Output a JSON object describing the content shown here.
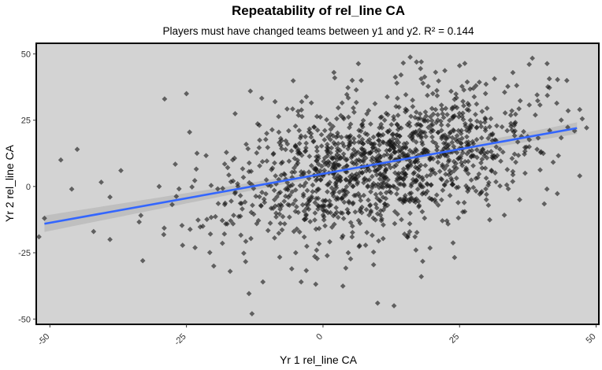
{
  "chart_data": {
    "type": "scatter",
    "title": "Repeatability of rel_line CA",
    "subtitle": "Players must have changed teams between y1 and y2. R² = 0.144",
    "xlabel": "Yr 1 rel_line CA",
    "ylabel": "Yr 2 rel_line CA",
    "xlim": [
      -52.5,
      50.5
    ],
    "ylim": [
      -52,
      54
    ],
    "x_ticks": [
      -50,
      -25,
      0,
      25,
      50
    ],
    "x_tick_labels": [
      "-50",
      "-25",
      "0",
      "25",
      "50"
    ],
    "y_ticks": [
      -50,
      -25,
      0,
      25,
      50
    ],
    "y_tick_labels": [
      "-50",
      "-25",
      "0",
      "25",
      "50"
    ],
    "grid": false,
    "r_squared": 0.144,
    "point_count": 1400,
    "point_distribution": {
      "center_x": 10,
      "center_y": 8,
      "sd_x": 14,
      "sd_y": 14,
      "correlation": 0.38
    },
    "series": [
      {
        "name": "points",
        "points": [
          {
            "x": 18,
            "y": 47
          },
          {
            "x": 2,
            "y": 43
          },
          {
            "x": 7,
            "y": 40
          },
          {
            "x": -25,
            "y": 35
          },
          {
            "x": -29,
            "y": 33
          },
          {
            "x": 28,
            "y": 38
          },
          {
            "x": -45,
            "y": 14
          },
          {
            "x": -48,
            "y": 10
          },
          {
            "x": -37,
            "y": 6
          },
          {
            "x": -46,
            "y": -1
          },
          {
            "x": -39,
            "y": -4
          },
          {
            "x": -51,
            "y": -12
          },
          {
            "x": -52,
            "y": -19
          },
          {
            "x": -39,
            "y": -20
          },
          {
            "x": -33,
            "y": -28
          },
          {
            "x": -42,
            "y": -17
          },
          {
            "x": -13,
            "y": -48
          },
          {
            "x": 10,
            "y": -44
          },
          {
            "x": 13,
            "y": -45
          },
          {
            "x": -11,
            "y": -36
          },
          {
            "x": -4,
            "y": -36
          },
          {
            "x": 18,
            "y": -34
          },
          {
            "x": 47,
            "y": 29
          },
          {
            "x": 47,
            "y": 4
          },
          {
            "x": 41,
            "y": -1
          },
          {
            "x": 37,
            "y": 5
          },
          {
            "x": 36,
            "y": -5
          },
          {
            "x": 35,
            "y": 23
          },
          {
            "x": -30,
            "y": 0
          },
          {
            "x": -22,
            "y": -15
          },
          {
            "x": -5,
            "y": -25
          },
          {
            "x": -20,
            "y": -30
          },
          {
            "x": -17,
            "y": -32
          }
        ]
      }
    ],
    "regression": {
      "x_range": [
        -51,
        46.5
      ],
      "slope": 0.37,
      "intercept": 4.8,
      "se_intercept": 0.55,
      "se_slope": 0.025,
      "x_mean": 8
    },
    "colors": {
      "panel": "#d3d3d3",
      "border": "#000000",
      "point": "#1a1a1a",
      "line": "#3366ff",
      "ribbon": "#bdbdbd"
    }
  }
}
